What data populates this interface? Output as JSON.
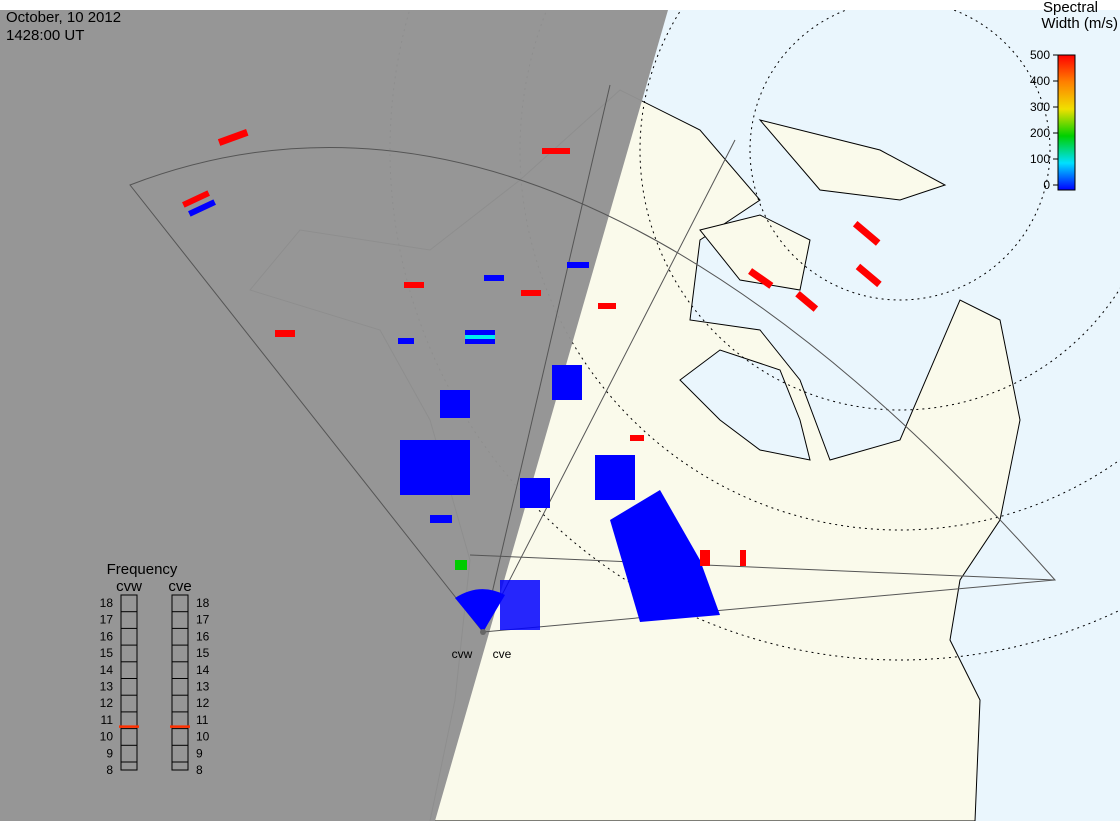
{
  "header": {
    "date": "October, 10 2012",
    "time": "1428:00 UT"
  },
  "colorbar": {
    "title": [
      "Spectral",
      "Width (m/s)"
    ],
    "lim": [
      0,
      500
    ],
    "ticks": [
      0,
      100,
      200,
      300,
      400,
      500
    ]
  },
  "frequency": {
    "title": "Frequency",
    "lim": [
      8,
      18
    ],
    "ticks": [
      8,
      9,
      10,
      11,
      12,
      13,
      14,
      15,
      16,
      17,
      18
    ],
    "radars": [
      {
        "name": "cvw",
        "value": 10.6
      },
      {
        "name": "cve",
        "value": 10.6
      }
    ]
  },
  "stations": [
    "cvw",
    "cve"
  ]
}
